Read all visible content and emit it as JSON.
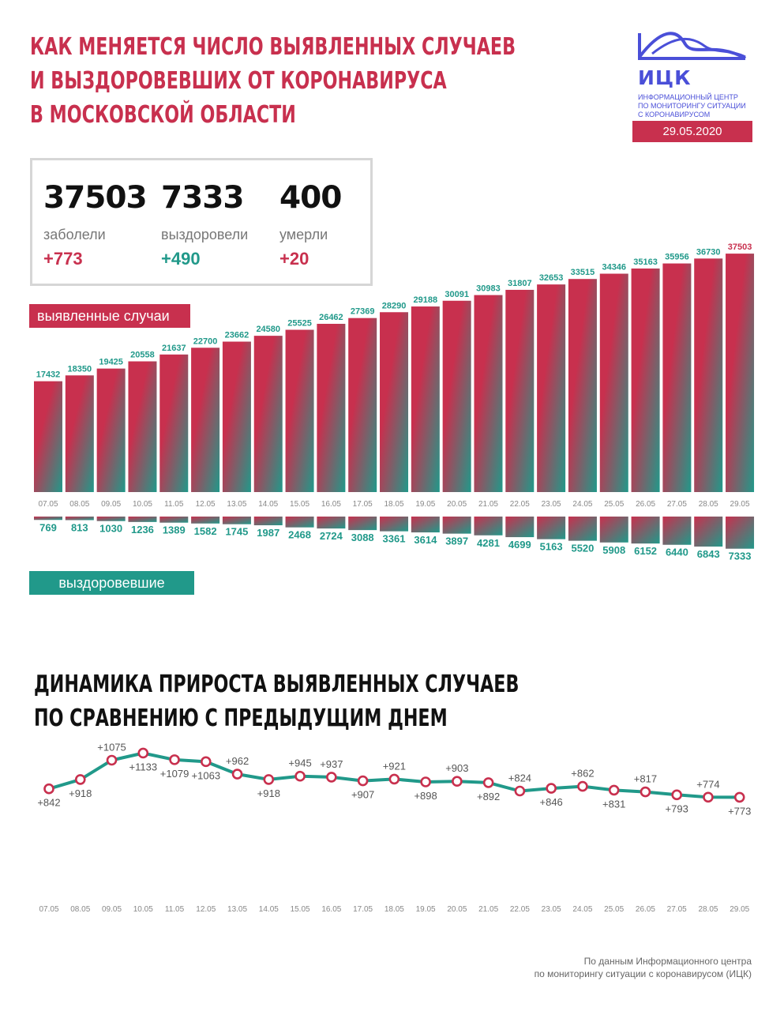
{
  "header": {
    "title_lines": [
      "КАК МЕНЯЕТСЯ ЧИСЛО ВЫЯВЛЕННЫХ СЛУЧАЕВ",
      "И ВЫЗДОРОВЕВШИХ ОТ КОРОНАВИРУСА",
      "В МОСКОВСКОЙ ОБЛАСТИ"
    ],
    "date": "29.05.2020"
  },
  "logo": {
    "abbr": "ИЦК",
    "desc_lines": [
      "ИНФОРМАЦИОННЫЙ ЦЕНТР",
      "ПО МОНИТОРИНГУ СИТУАЦИИ",
      "С КОРОНАВИРУСОМ"
    ]
  },
  "stats": [
    {
      "value": "37503",
      "label": "заболели",
      "delta": "+773",
      "color": "#c8304e"
    },
    {
      "value": "7333",
      "label": "выздоровели",
      "delta": "+490",
      "color": "#21998a"
    },
    {
      "value": "400",
      "label": "умерли",
      "delta": "+20",
      "color": "#c8304e"
    }
  ],
  "labels": {
    "cases": "выявленные случаи",
    "recovered": "выздоровевшие"
  },
  "colors": {
    "pink": "#c8304e",
    "teal": "#21998a"
  },
  "chart_data": [
    {
      "type": "bar",
      "categories": [
        "07.05",
        "08.05",
        "09.05",
        "10.05",
        "11.05",
        "12.05",
        "13.05",
        "14.05",
        "15.05",
        "16.05",
        "17.05",
        "18.05",
        "19.05",
        "20.05",
        "21.05",
        "22.05",
        "23.05",
        "24.05",
        "25.05",
        "26.05",
        "27.05",
        "28.05",
        "29.05"
      ],
      "series": [
        {
          "name": "выявленные случаи",
          "values": [
            17432,
            18350,
            19425,
            20558,
            21637,
            22700,
            23662,
            24580,
            25525,
            26462,
            27369,
            28290,
            29188,
            30091,
            30983,
            31807,
            32653,
            33515,
            34346,
            35163,
            35956,
            36730,
            37503
          ]
        },
        {
          "name": "выздоровевшие",
          "values": [
            769,
            813,
            1030,
            1236,
            1389,
            1582,
            1745,
            1987,
            2468,
            2724,
            3088,
            3361,
            3614,
            3897,
            4281,
            4699,
            5163,
            5520,
            5908,
            6152,
            6440,
            6843,
            7333
          ]
        }
      ]
    },
    {
      "type": "line",
      "title_lines": [
        "ДИНАМИКА ПРИРОСТА ВЫЯВЛЕННЫХ СЛУЧАЕВ",
        "ПО СРАВНЕНИЮ С ПРЕДЫДУЩИМ ДНЕМ"
      ],
      "categories": [
        "07.05",
        "08.05",
        "09.05",
        "10.05",
        "11.05",
        "12.05",
        "13.05",
        "14.05",
        "15.05",
        "16.05",
        "17.05",
        "18.05",
        "19.05",
        "20.05",
        "21.05",
        "22.05",
        "23.05",
        "24.05",
        "25.05",
        "26.05",
        "27.05",
        "28.05",
        "29.05"
      ],
      "values": [
        842,
        918,
        1075,
        1133,
        1079,
        1063,
        962,
        918,
        945,
        937,
        907,
        921,
        898,
        903,
        892,
        824,
        846,
        862,
        831,
        817,
        793,
        774,
        773
      ],
      "point_labels": [
        "+842",
        "+918",
        "+1075",
        "+1133",
        "+1079",
        "+1063",
        "+962",
        "+918",
        "+945",
        "+937",
        "+907",
        "+921",
        "+898",
        "+903",
        "+892",
        "+824",
        "+846",
        "+862",
        "+831",
        "+817",
        "+793",
        "+774",
        "+773"
      ],
      "label_positions": [
        "below",
        "below",
        "above",
        "below",
        "below",
        "below",
        "above",
        "below",
        "above",
        "above",
        "below",
        "above",
        "below",
        "above",
        "below",
        "above",
        "below",
        "above",
        "below",
        "above",
        "below",
        "above",
        "below"
      ]
    }
  ],
  "source_lines": [
    "По данным Информационного центра",
    "по мониторингу ситуации с коронавирусом (ИЦК)"
  ]
}
